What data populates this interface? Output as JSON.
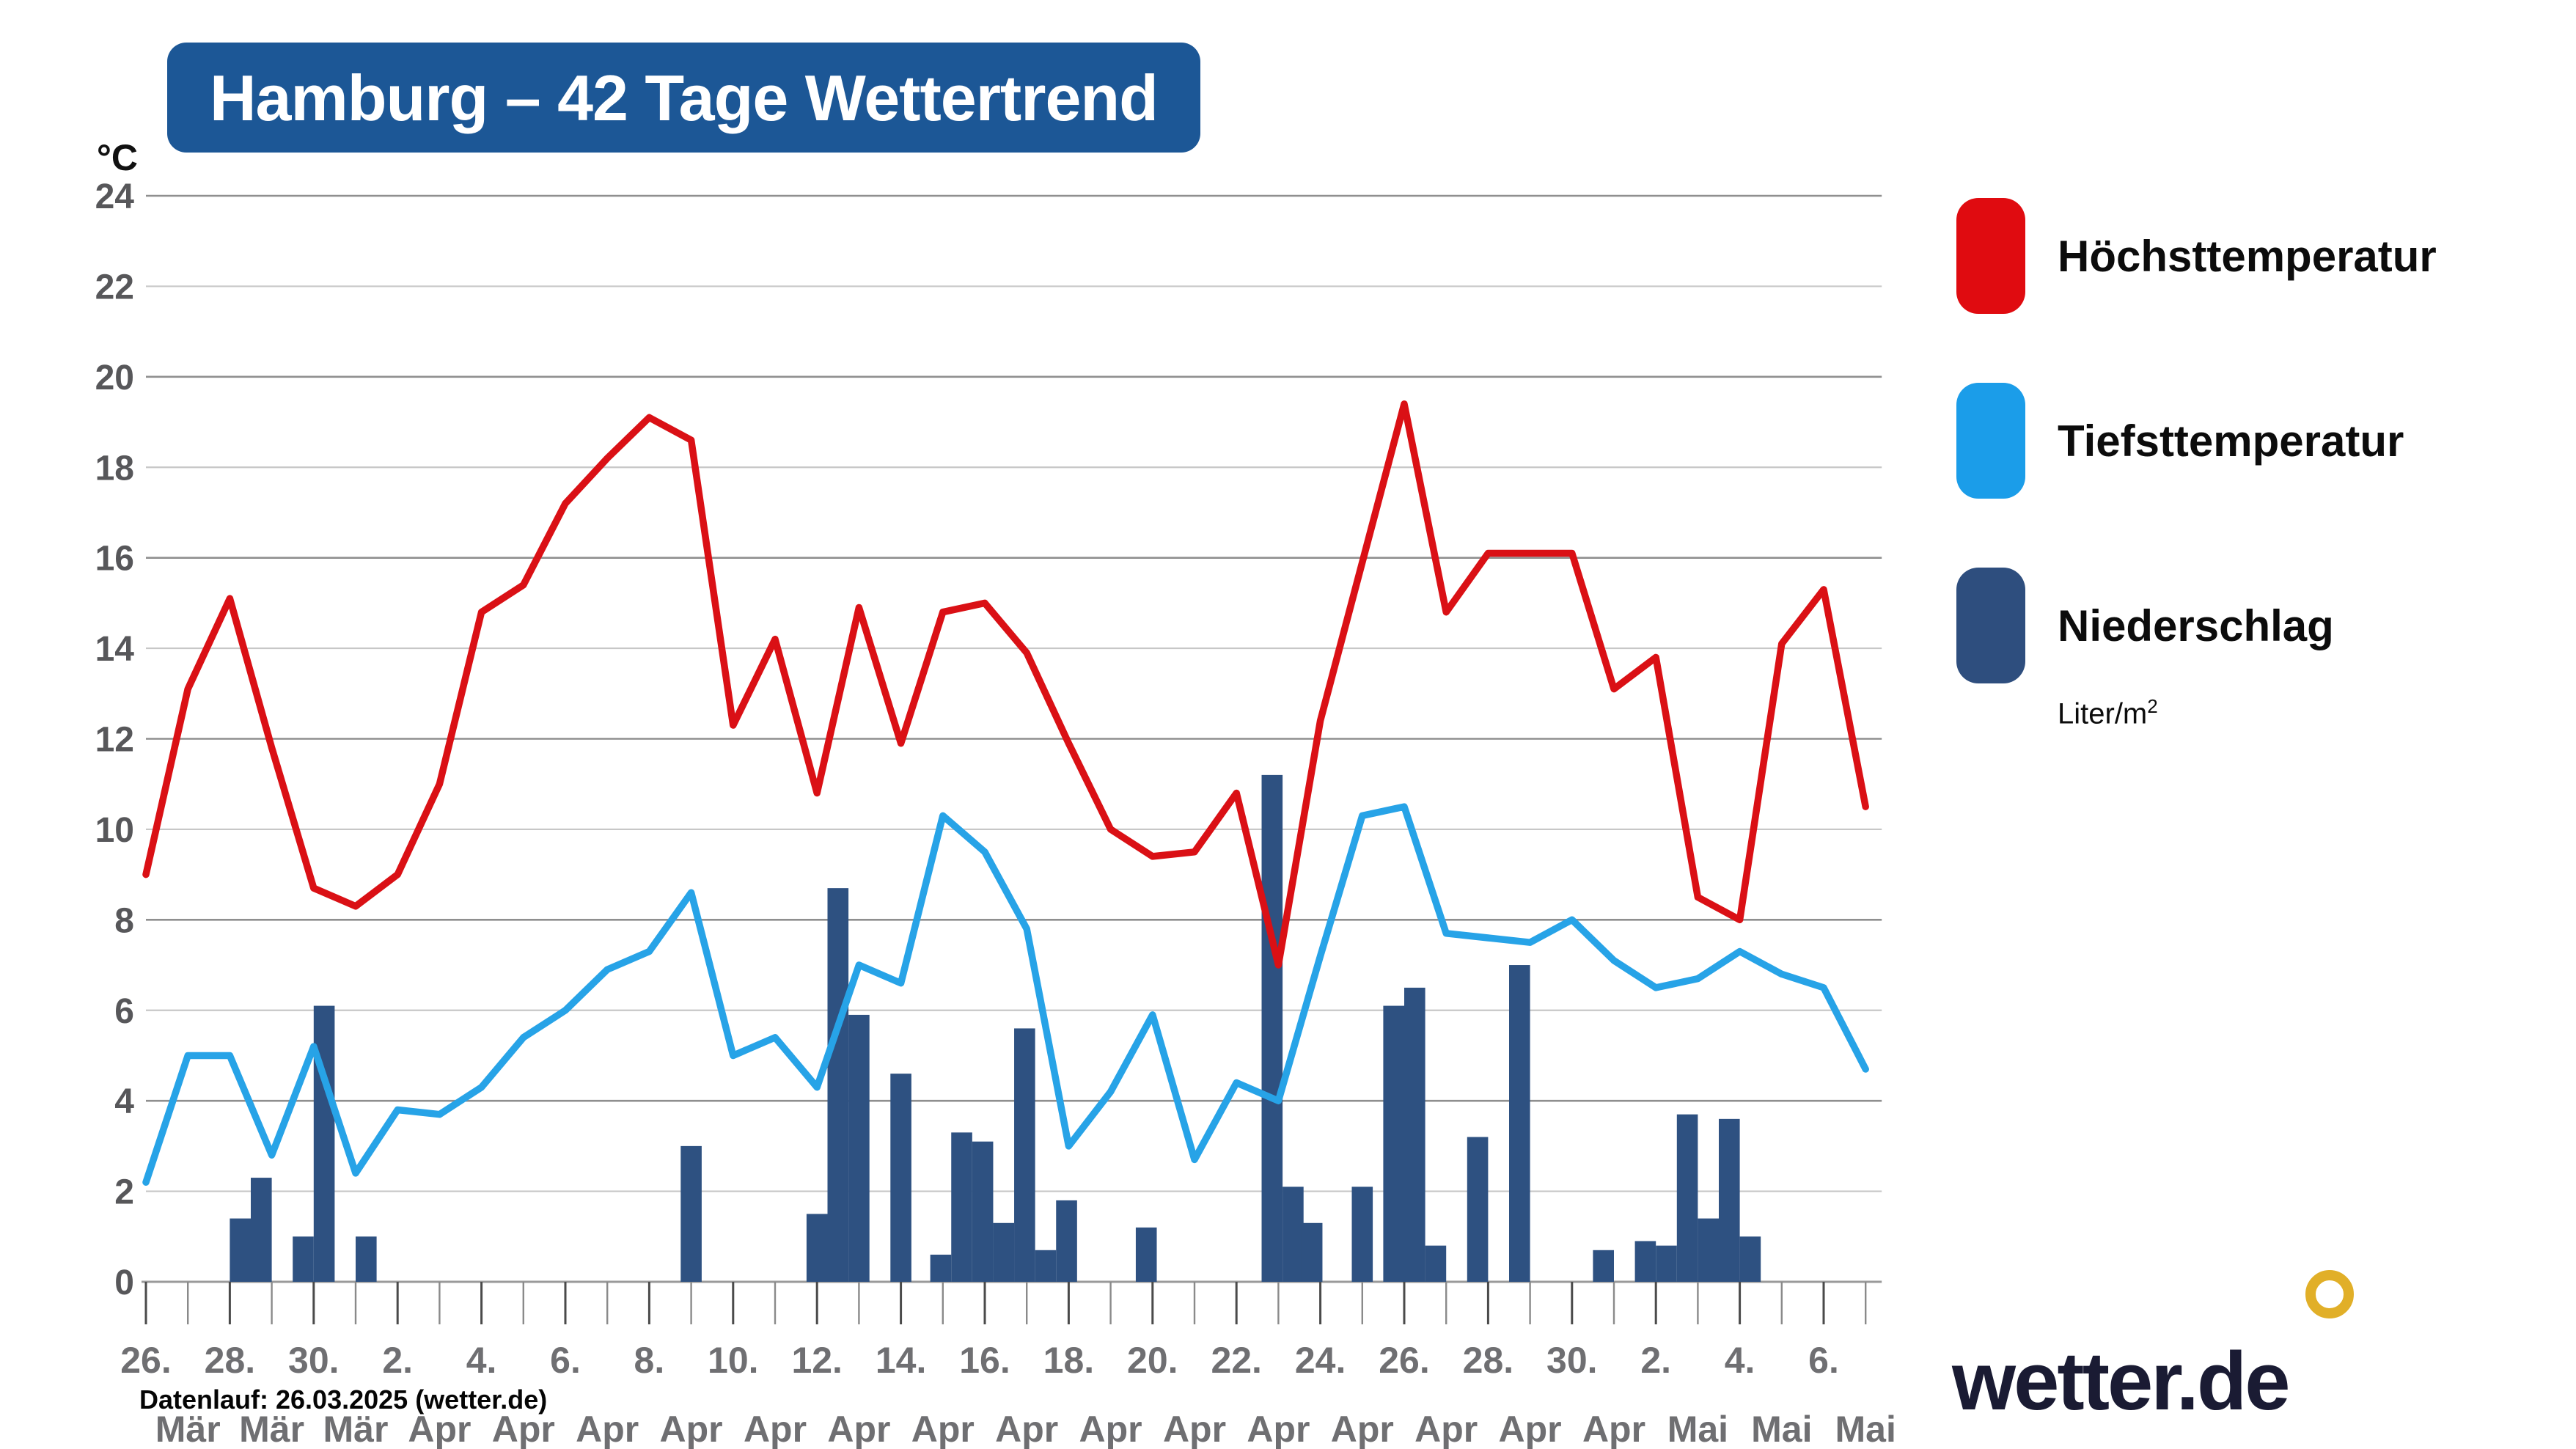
{
  "title": "Hamburg – 42 Tage Wettertrend",
  "y_axis_unit": "°C",
  "legend": {
    "items": [
      {
        "id": "high",
        "label": "Höchsttemperatur",
        "color": "#e00b10"
      },
      {
        "id": "low",
        "label": "Tiefsttemperatur",
        "color": "#1b9de9"
      },
      {
        "id": "precip",
        "label": "Niederschlag",
        "color": "#2e4e7e"
      }
    ],
    "sublabel_base": "Liter/m",
    "sublabel_sup": "2"
  },
  "footer": {
    "datenlauf": "Datenlauf: 26.03.2025 (wetter.de)"
  },
  "logo": {
    "text": "wetter.de",
    "ring_color": "#e1af28"
  },
  "chart_data": {
    "type": "line+bar",
    "title": "Hamburg – 42 Tage Wettertrend",
    "ylabel": "°C",
    "ylim": [
      0,
      24
    ],
    "y_tick_step": 2,
    "grid": "horizontal, darker every 4 °C",
    "legend_position": "right",
    "x_description": "42 daily ticks from 26. Mär to 7. Mai (even days labelled, month shown one tick right of its day number)",
    "x_tick_count": 42,
    "x_labels": [
      {
        "i": 0,
        "day": "26.",
        "month": "Mär"
      },
      {
        "i": 2,
        "day": "28.",
        "month": "Mär"
      },
      {
        "i": 4,
        "day": "30.",
        "month": "Mär"
      },
      {
        "i": 6,
        "day": "2.",
        "month": "Apr"
      },
      {
        "i": 8,
        "day": "4.",
        "month": "Apr"
      },
      {
        "i": 10,
        "day": "6.",
        "month": "Apr"
      },
      {
        "i": 12,
        "day": "8.",
        "month": "Apr"
      },
      {
        "i": 14,
        "day": "10.",
        "month": "Apr"
      },
      {
        "i": 16,
        "day": "12.",
        "month": "Apr"
      },
      {
        "i": 18,
        "day": "14.",
        "month": "Apr"
      },
      {
        "i": 20,
        "day": "16.",
        "month": "Apr"
      },
      {
        "i": 22,
        "day": "18.",
        "month": "Apr"
      },
      {
        "i": 24,
        "day": "20.",
        "month": "Apr"
      },
      {
        "i": 26,
        "day": "22.",
        "month": "Apr"
      },
      {
        "i": 28,
        "day": "24.",
        "month": "Apr"
      },
      {
        "i": 30,
        "day": "26.",
        "month": "Apr"
      },
      {
        "i": 32,
        "day": "28.",
        "month": "Apr"
      },
      {
        "i": 34,
        "day": "30.",
        "month": "Apr"
      },
      {
        "i": 36,
        "day": "2.",
        "month": "Mai"
      },
      {
        "i": 38,
        "day": "4.",
        "month": "Mai"
      },
      {
        "i": 40,
        "day": "6.",
        "month": "Mai"
      }
    ],
    "series": [
      {
        "name": "Höchsttemperatur",
        "type": "line",
        "color": "#da1015",
        "unit": "°C",
        "values": [
          9.0,
          13.1,
          15.1,
          11.8,
          8.7,
          8.3,
          9.0,
          11.0,
          14.8,
          15.4,
          17.2,
          18.2,
          19.1,
          18.6,
          12.3,
          14.2,
          10.8,
          14.9,
          11.9,
          14.8,
          15.0,
          13.9,
          11.9,
          10.0,
          9.4,
          9.5,
          10.8,
          7.0,
          12.4,
          15.9,
          19.4,
          14.8,
          16.1,
          16.1,
          16.1,
          13.1,
          13.8,
          8.5,
          8.0,
          14.1,
          15.3,
          10.5
        ]
      },
      {
        "name": "Tiefsttemperatur",
        "type": "line",
        "color": "#27a3e7",
        "unit": "°C",
        "values": [
          2.2,
          5.0,
          5.0,
          2.8,
          5.2,
          2.4,
          3.8,
          3.7,
          4.3,
          5.4,
          6.0,
          6.9,
          7.3,
          8.6,
          5.0,
          5.4,
          4.3,
          7.0,
          6.6,
          10.3,
          9.5,
          7.8,
          3.0,
          4.2,
          5.9,
          2.7,
          4.4,
          4.0,
          7.2,
          10.3,
          10.5,
          7.7,
          7.6,
          7.5,
          8.0,
          7.1,
          6.5,
          6.7,
          7.3,
          6.8,
          6.5,
          4.7
        ]
      },
      {
        "name": "Niederschlag",
        "type": "bar",
        "color": "#2e5181",
        "unit": "Liter/m2",
        "bar_width_days": 0.5,
        "points": [
          [
            2.25,
            1.4
          ],
          [
            2.75,
            2.3
          ],
          [
            3.75,
            1.0
          ],
          [
            4.25,
            6.1
          ],
          [
            5.25,
            1.0
          ],
          [
            13.0,
            3.0
          ],
          [
            16.0,
            1.5
          ],
          [
            16.5,
            8.7
          ],
          [
            17.0,
            5.9
          ],
          [
            18.0,
            4.6
          ],
          [
            18.95,
            0.6
          ],
          [
            19.45,
            3.3
          ],
          [
            19.95,
            3.1
          ],
          [
            20.45,
            1.3
          ],
          [
            20.95,
            5.6
          ],
          [
            21.45,
            0.7
          ],
          [
            21.95,
            1.8
          ],
          [
            23.85,
            1.2
          ],
          [
            26.85,
            11.2
          ],
          [
            27.35,
            2.1
          ],
          [
            27.8,
            1.3
          ],
          [
            29.0,
            2.1
          ],
          [
            29.75,
            6.1
          ],
          [
            30.25,
            6.5
          ],
          [
            30.75,
            0.8
          ],
          [
            31.75,
            3.2
          ],
          [
            32.75,
            7.0
          ],
          [
            34.75,
            0.7
          ],
          [
            35.75,
            0.9
          ],
          [
            36.25,
            0.8
          ],
          [
            36.75,
            3.7
          ],
          [
            37.25,
            1.4
          ],
          [
            37.75,
            3.6
          ],
          [
            38.25,
            1.0
          ]
        ]
      }
    ]
  },
  "colors": {
    "title_bg": "#1c5796",
    "grid_minor": "#c7c7c7",
    "grid_major": "#8f8f8f",
    "axis": "#9a9a9a",
    "tick_labeled": "#4a4a4a",
    "tick_unlabeled": "#8a8a8a",
    "y_label": "#57575a",
    "x_label": "#6f6f72"
  }
}
